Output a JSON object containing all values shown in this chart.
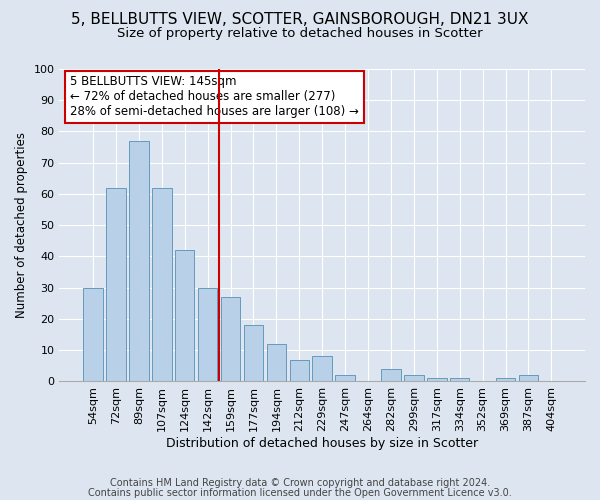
{
  "title1": "5, BELLBUTTS VIEW, SCOTTER, GAINSBOROUGH, DN21 3UX",
  "title2": "Size of property relative to detached houses in Scotter",
  "xlabel": "Distribution of detached houses by size in Scotter",
  "ylabel": "Number of detached properties",
  "categories": [
    "54sqm",
    "72sqm",
    "89sqm",
    "107sqm",
    "124sqm",
    "142sqm",
    "159sqm",
    "177sqm",
    "194sqm",
    "212sqm",
    "229sqm",
    "247sqm",
    "264sqm",
    "282sqm",
    "299sqm",
    "317sqm",
    "334sqm",
    "352sqm",
    "369sqm",
    "387sqm",
    "404sqm"
  ],
  "values": [
    30,
    62,
    77,
    62,
    42,
    30,
    27,
    18,
    12,
    7,
    8,
    2,
    0,
    4,
    2,
    1,
    1,
    0,
    1,
    2,
    0
  ],
  "bar_color": "#b8d0e8",
  "bar_edge_color": "#6699bb",
  "annotation_text": "5 BELLBUTTS VIEW: 145sqm\n← 72% of detached houses are smaller (277)\n28% of semi-detached houses are larger (108) →",
  "annotation_box_color": "white",
  "annotation_box_edge_color": "#cc0000",
  "vline_x": 5.5,
  "vline_color": "#cc0000",
  "ylim": [
    0,
    100
  ],
  "background_color": "#dde6f0",
  "plot_bg_color": "#dde6f0",
  "footer1": "Contains HM Land Registry data © Crown copyright and database right 2024.",
  "footer2": "Contains public sector information licensed under the Open Government Licence v3.0.",
  "title1_fontsize": 11,
  "title2_fontsize": 9.5,
  "xlabel_fontsize": 9,
  "ylabel_fontsize": 8.5,
  "tick_fontsize": 8,
  "annotation_fontsize": 8.5,
  "footer_fontsize": 7
}
